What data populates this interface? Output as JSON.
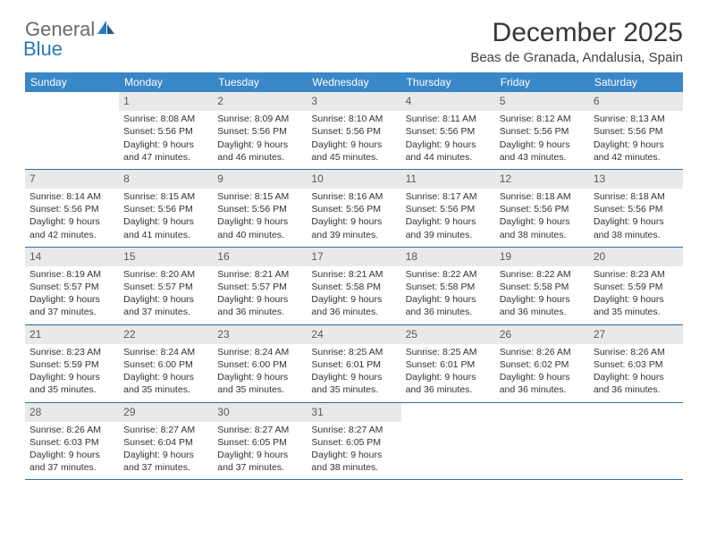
{
  "logo": {
    "general": "General",
    "blue": "Blue"
  },
  "title": "December 2025",
  "location": "Beas de Granada, Andalusia, Spain",
  "colors": {
    "header_bg": "#3a87c7",
    "header_text": "#ffffff",
    "row_divider": "#2e6ea3",
    "daynum_bg": "#e9e9e9",
    "logo_gray": "#6b6b6b",
    "logo_blue": "#2a7ab8"
  },
  "weekdays": [
    "Sunday",
    "Monday",
    "Tuesday",
    "Wednesday",
    "Thursday",
    "Friday",
    "Saturday"
  ],
  "weeks": [
    [
      {
        "n": "",
        "sr": "",
        "ss": "",
        "dl": ""
      },
      {
        "n": "1",
        "sr": "Sunrise: 8:08 AM",
        "ss": "Sunset: 5:56 PM",
        "dl": "Daylight: 9 hours and 47 minutes."
      },
      {
        "n": "2",
        "sr": "Sunrise: 8:09 AM",
        "ss": "Sunset: 5:56 PM",
        "dl": "Daylight: 9 hours and 46 minutes."
      },
      {
        "n": "3",
        "sr": "Sunrise: 8:10 AM",
        "ss": "Sunset: 5:56 PM",
        "dl": "Daylight: 9 hours and 45 minutes."
      },
      {
        "n": "4",
        "sr": "Sunrise: 8:11 AM",
        "ss": "Sunset: 5:56 PM",
        "dl": "Daylight: 9 hours and 44 minutes."
      },
      {
        "n": "5",
        "sr": "Sunrise: 8:12 AM",
        "ss": "Sunset: 5:56 PM",
        "dl": "Daylight: 9 hours and 43 minutes."
      },
      {
        "n": "6",
        "sr": "Sunrise: 8:13 AM",
        "ss": "Sunset: 5:56 PM",
        "dl": "Daylight: 9 hours and 42 minutes."
      }
    ],
    [
      {
        "n": "7",
        "sr": "Sunrise: 8:14 AM",
        "ss": "Sunset: 5:56 PM",
        "dl": "Daylight: 9 hours and 42 minutes."
      },
      {
        "n": "8",
        "sr": "Sunrise: 8:15 AM",
        "ss": "Sunset: 5:56 PM",
        "dl": "Daylight: 9 hours and 41 minutes."
      },
      {
        "n": "9",
        "sr": "Sunrise: 8:15 AM",
        "ss": "Sunset: 5:56 PM",
        "dl": "Daylight: 9 hours and 40 minutes."
      },
      {
        "n": "10",
        "sr": "Sunrise: 8:16 AM",
        "ss": "Sunset: 5:56 PM",
        "dl": "Daylight: 9 hours and 39 minutes."
      },
      {
        "n": "11",
        "sr": "Sunrise: 8:17 AM",
        "ss": "Sunset: 5:56 PM",
        "dl": "Daylight: 9 hours and 39 minutes."
      },
      {
        "n": "12",
        "sr": "Sunrise: 8:18 AM",
        "ss": "Sunset: 5:56 PM",
        "dl": "Daylight: 9 hours and 38 minutes."
      },
      {
        "n": "13",
        "sr": "Sunrise: 8:18 AM",
        "ss": "Sunset: 5:56 PM",
        "dl": "Daylight: 9 hours and 38 minutes."
      }
    ],
    [
      {
        "n": "14",
        "sr": "Sunrise: 8:19 AM",
        "ss": "Sunset: 5:57 PM",
        "dl": "Daylight: 9 hours and 37 minutes."
      },
      {
        "n": "15",
        "sr": "Sunrise: 8:20 AM",
        "ss": "Sunset: 5:57 PM",
        "dl": "Daylight: 9 hours and 37 minutes."
      },
      {
        "n": "16",
        "sr": "Sunrise: 8:21 AM",
        "ss": "Sunset: 5:57 PM",
        "dl": "Daylight: 9 hours and 36 minutes."
      },
      {
        "n": "17",
        "sr": "Sunrise: 8:21 AM",
        "ss": "Sunset: 5:58 PM",
        "dl": "Daylight: 9 hours and 36 minutes."
      },
      {
        "n": "18",
        "sr": "Sunrise: 8:22 AM",
        "ss": "Sunset: 5:58 PM",
        "dl": "Daylight: 9 hours and 36 minutes."
      },
      {
        "n": "19",
        "sr": "Sunrise: 8:22 AM",
        "ss": "Sunset: 5:58 PM",
        "dl": "Daylight: 9 hours and 36 minutes."
      },
      {
        "n": "20",
        "sr": "Sunrise: 8:23 AM",
        "ss": "Sunset: 5:59 PM",
        "dl": "Daylight: 9 hours and 35 minutes."
      }
    ],
    [
      {
        "n": "21",
        "sr": "Sunrise: 8:23 AM",
        "ss": "Sunset: 5:59 PM",
        "dl": "Daylight: 9 hours and 35 minutes."
      },
      {
        "n": "22",
        "sr": "Sunrise: 8:24 AM",
        "ss": "Sunset: 6:00 PM",
        "dl": "Daylight: 9 hours and 35 minutes."
      },
      {
        "n": "23",
        "sr": "Sunrise: 8:24 AM",
        "ss": "Sunset: 6:00 PM",
        "dl": "Daylight: 9 hours and 35 minutes."
      },
      {
        "n": "24",
        "sr": "Sunrise: 8:25 AM",
        "ss": "Sunset: 6:01 PM",
        "dl": "Daylight: 9 hours and 35 minutes."
      },
      {
        "n": "25",
        "sr": "Sunrise: 8:25 AM",
        "ss": "Sunset: 6:01 PM",
        "dl": "Daylight: 9 hours and 36 minutes."
      },
      {
        "n": "26",
        "sr": "Sunrise: 8:26 AM",
        "ss": "Sunset: 6:02 PM",
        "dl": "Daylight: 9 hours and 36 minutes."
      },
      {
        "n": "27",
        "sr": "Sunrise: 8:26 AM",
        "ss": "Sunset: 6:03 PM",
        "dl": "Daylight: 9 hours and 36 minutes."
      }
    ],
    [
      {
        "n": "28",
        "sr": "Sunrise: 8:26 AM",
        "ss": "Sunset: 6:03 PM",
        "dl": "Daylight: 9 hours and 37 minutes."
      },
      {
        "n": "29",
        "sr": "Sunrise: 8:27 AM",
        "ss": "Sunset: 6:04 PM",
        "dl": "Daylight: 9 hours and 37 minutes."
      },
      {
        "n": "30",
        "sr": "Sunrise: 8:27 AM",
        "ss": "Sunset: 6:05 PM",
        "dl": "Daylight: 9 hours and 37 minutes."
      },
      {
        "n": "31",
        "sr": "Sunrise: 8:27 AM",
        "ss": "Sunset: 6:05 PM",
        "dl": "Daylight: 9 hours and 38 minutes."
      },
      {
        "n": "",
        "sr": "",
        "ss": "",
        "dl": ""
      },
      {
        "n": "",
        "sr": "",
        "ss": "",
        "dl": ""
      },
      {
        "n": "",
        "sr": "",
        "ss": "",
        "dl": ""
      }
    ]
  ]
}
